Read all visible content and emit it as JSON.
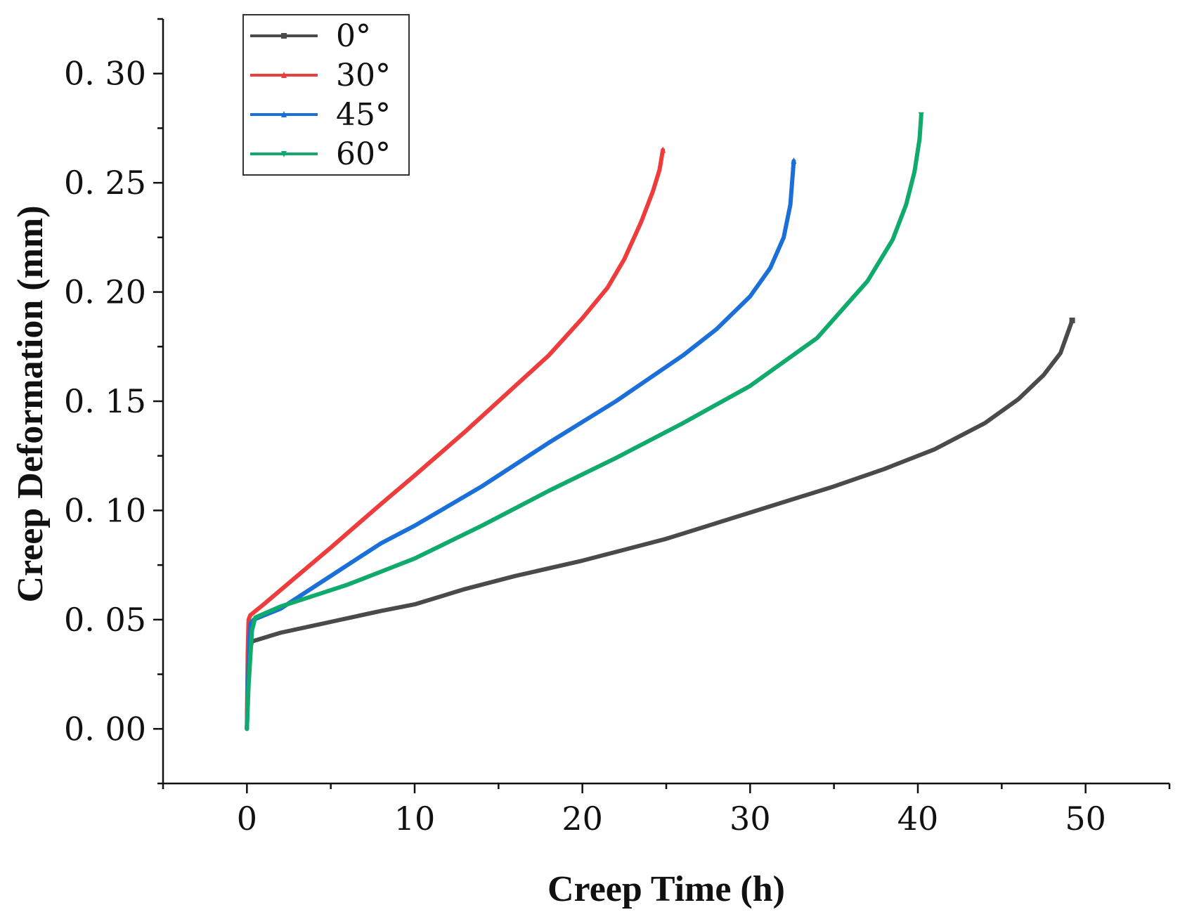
{
  "chart_data": {
    "type": "line",
    "xlabel": "Creep Time (h)",
    "ylabel": "Creep Deformation (mm)",
    "xlim": [
      -5,
      55
    ],
    "ylim": [
      -0.025,
      0.325
    ],
    "x_ticks": [
      0,
      10,
      20,
      30,
      40,
      50
    ],
    "x_tick_labels": [
      "0",
      "10",
      "20",
      "30",
      "40",
      "50"
    ],
    "x_minor_ticks": [
      -5,
      5,
      15,
      25,
      35,
      45,
      55
    ],
    "y_ticks": [
      0.0,
      0.05,
      0.1,
      0.15,
      0.2,
      0.25,
      0.3
    ],
    "y_tick_labels": [
      "0. 00",
      "0. 05",
      "0. 10",
      "0. 15",
      "0. 20",
      "0. 25",
      "0. 30"
    ],
    "y_minor_ticks": [
      -0.025,
      0.025,
      0.075,
      0.125,
      0.175,
      0.225,
      0.275,
      0.325
    ],
    "grid": false,
    "legend_position": "top-left",
    "series": [
      {
        "name": "0°",
        "color": "#4a4a4a",
        "x": [
          0,
          0.05,
          0.15,
          0.3,
          2,
          5,
          8,
          10,
          13,
          16,
          20,
          25,
          30,
          35,
          38,
          41,
          44,
          46,
          47.5,
          48.5,
          49.2
        ],
        "y": [
          0,
          0.02,
          0.035,
          0.04,
          0.044,
          0.049,
          0.054,
          0.057,
          0.064,
          0.07,
          0.077,
          0.087,
          0.099,
          0.111,
          0.119,
          0.128,
          0.14,
          0.151,
          0.162,
          0.172,
          0.187
        ]
      },
      {
        "name": "30°",
        "color": "#ee3b3b",
        "x": [
          0,
          0.05,
          0.1,
          0.2,
          1,
          3,
          5,
          8,
          10,
          13,
          16,
          18,
          20,
          21.5,
          22.5,
          23.5,
          24.2,
          24.6,
          24.8
        ],
        "y": [
          0,
          0.035,
          0.05,
          0.052,
          0.057,
          0.07,
          0.083,
          0.103,
          0.116,
          0.136,
          0.157,
          0.171,
          0.188,
          0.202,
          0.215,
          0.232,
          0.246,
          0.256,
          0.265
        ]
      },
      {
        "name": "45°",
        "color": "#1a6fd8",
        "x": [
          0,
          0.1,
          0.2,
          0.4,
          2,
          4,
          6,
          8,
          10,
          14,
          18,
          22,
          26,
          28,
          30,
          31.2,
          32,
          32.4,
          32.6
        ],
        "y": [
          0,
          0.03,
          0.048,
          0.05,
          0.055,
          0.065,
          0.075,
          0.085,
          0.093,
          0.111,
          0.131,
          0.15,
          0.171,
          0.183,
          0.198,
          0.211,
          0.225,
          0.24,
          0.26
        ]
      },
      {
        "name": "60°",
        "color": "#0faa6c",
        "x": [
          0,
          0.1,
          0.3,
          0.5,
          2,
          4,
          6,
          8,
          10,
          14,
          18,
          22,
          26,
          30,
          34,
          37,
          38.5,
          39.3,
          39.8,
          40.1,
          40.2
        ],
        "y": [
          0,
          0.02,
          0.045,
          0.051,
          0.056,
          0.061,
          0.066,
          0.072,
          0.078,
          0.093,
          0.109,
          0.124,
          0.14,
          0.157,
          0.179,
          0.205,
          0.224,
          0.24,
          0.255,
          0.27,
          0.281
        ]
      }
    ]
  }
}
